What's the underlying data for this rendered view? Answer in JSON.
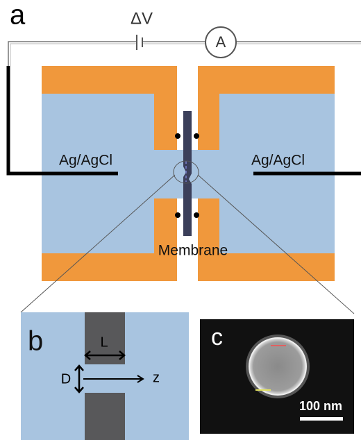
{
  "panels": {
    "a": {
      "label": "a",
      "voltage": "ΔV",
      "ammeter": "A",
      "left_electrode": "Ag/AgCl",
      "right_electrode": "Ag/AgCl",
      "membrane": "Membrane"
    },
    "b": {
      "label": "b",
      "length": "L",
      "diameter": "D",
      "axis": "z"
    },
    "c": {
      "label": "c",
      "scale_bar": "100 nm"
    }
  }
}
